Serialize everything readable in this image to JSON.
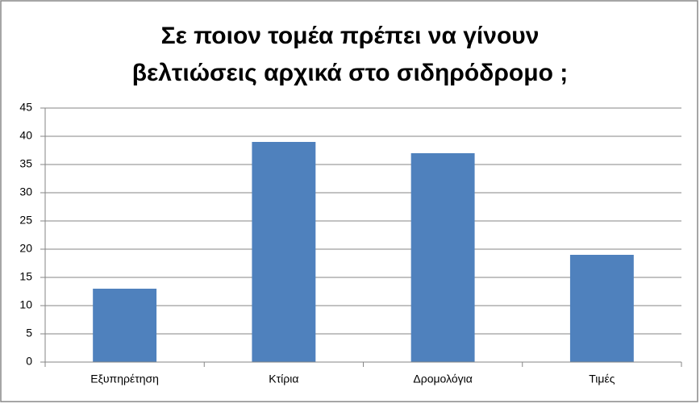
{
  "chart_data": {
    "type": "bar",
    "title": [
      "Σε ποιον τομέα πρέπει να γίνουν",
      "βελτιώσεις  αρχικά στο σιδηρόδρομο ;"
    ],
    "categories": [
      "Εξυπηρέτηση",
      "Κτίρια",
      "Δρομολόγια",
      "Τιμές"
    ],
    "values": [
      13,
      39,
      37,
      19
    ],
    "color": "#4f81bd",
    "ylim": [
      0,
      45
    ],
    "yticks": [
      0,
      5,
      10,
      15,
      20,
      25,
      30,
      35,
      40,
      45
    ],
    "grid": true
  }
}
